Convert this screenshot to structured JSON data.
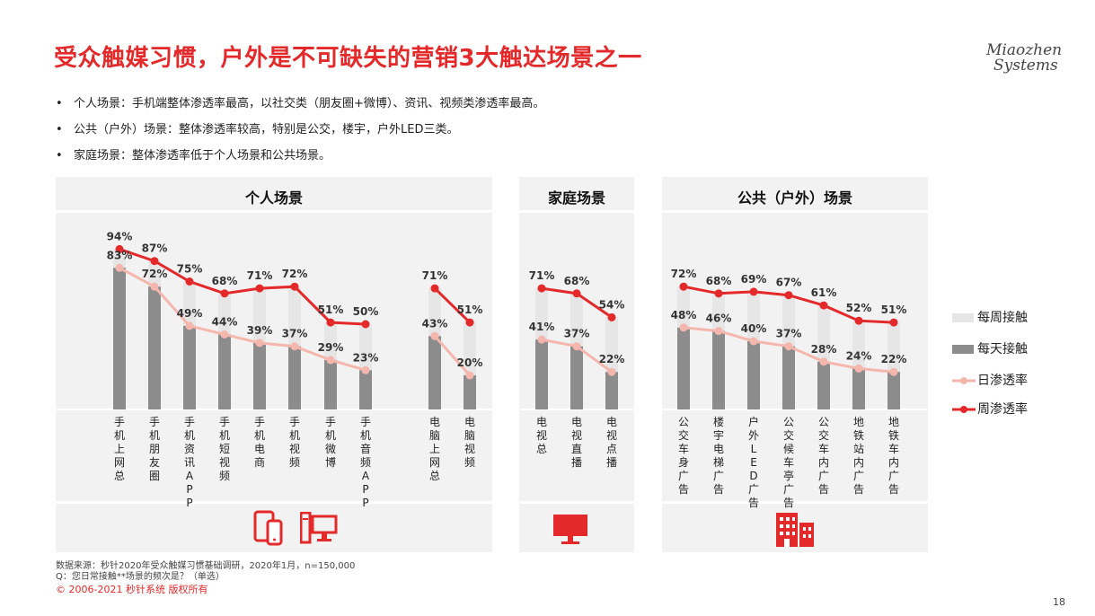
{
  "title": "受众触媒习惯，户外是不可缺失的营销3大触达场景之一",
  "logo": {
    "line1": "Miaozhen",
    "line2": "Systems"
  },
  "bullets": [
    "个人场景：手机端整体渗透率最高，以社交类（朋友圈+微博）、资讯、视频类渗透率最高。",
    "公共（户外）场景：整体渗透率较高，特别是公交，楼宇，户外LED三类。",
    "家庭场景：整体渗透率低于个人场景和公共场景。"
  ],
  "bullet_symbol": "•",
  "panels": {
    "personal": "个人场景",
    "home": "家庭场景",
    "public": "公共（户外）场景"
  },
  "chart_data": {
    "type": "bar",
    "series": [
      {
        "name": "每周接触",
        "type": "bar",
        "color": "#e6e6e6"
      },
      {
        "name": "每天接触",
        "type": "bar",
        "color": "#8c8c8c"
      },
      {
        "name": "日渗透率",
        "type": "line",
        "color": "#f4b6ad"
      },
      {
        "name": "周渗透率",
        "type": "line",
        "color": "#e4292b"
      }
    ],
    "groups": [
      {
        "name": "个人场景",
        "categories": [
          {
            "label": "手机上网总",
            "weekly": 94,
            "daily": 83
          },
          {
            "label": "手机朋友圈",
            "weekly": 87,
            "daily": 72
          },
          {
            "label": "手机资讯APP",
            "weekly": 75,
            "daily": 49
          },
          {
            "label": "手机短视频",
            "weekly": 68,
            "daily": 44
          },
          {
            "label": "手机电商",
            "weekly": 71,
            "daily": 39
          },
          {
            "label": "手机视频",
            "weekly": 72,
            "daily": 37
          },
          {
            "label": "手机微博",
            "weekly": 51,
            "daily": 29
          },
          {
            "label": "手机音频APP",
            "weekly": 50,
            "daily": 23
          },
          {
            "label": "电脑上网总",
            "weekly": 71,
            "daily": 43
          },
          {
            "label": "电脑视频",
            "weekly": 51,
            "daily": 20
          }
        ]
      },
      {
        "name": "家庭场景",
        "categories": [
          {
            "label": "电视总",
            "weekly": 71,
            "daily": 41
          },
          {
            "label": "电视直播",
            "weekly": 68,
            "daily": 37
          },
          {
            "label": "电视点播",
            "weekly": 54,
            "daily": 22
          }
        ]
      },
      {
        "name": "公共（户外）场景",
        "categories": [
          {
            "label": "公交车身广告",
            "weekly": 72,
            "daily": 48
          },
          {
            "label": "楼宇电梯广告",
            "weekly": 68,
            "daily": 46
          },
          {
            "label": "户外LED广告",
            "weekly": 69,
            "daily": 40
          },
          {
            "label": "公交候车亭广告",
            "weekly": 67,
            "daily": 37
          },
          {
            "label": "公交车内广告",
            "weekly": 61,
            "daily": 28
          },
          {
            "label": "地铁站内广告",
            "weekly": 52,
            "daily": 24
          },
          {
            "label": "地铁车内广告",
            "weekly": 51,
            "daily": 22
          }
        ]
      }
    ],
    "value_suffix": "%"
  },
  "legend": [
    "每周接触",
    "每天接触",
    "日渗透率",
    "周渗透率"
  ],
  "footnotes": {
    "source": "数据来源：秒针2020年受众触媒习惯基础调研，2020年1月，n=150,000",
    "question": "Q：您日常接触**场景的频次是？（单选）"
  },
  "copyright": "© 2006-2021 秒针系统 版权所有",
  "page_number": "18",
  "icons": [
    "phone-tablet-icon",
    "desktop-computer-icon",
    "tv-icon",
    "building-icon"
  ]
}
